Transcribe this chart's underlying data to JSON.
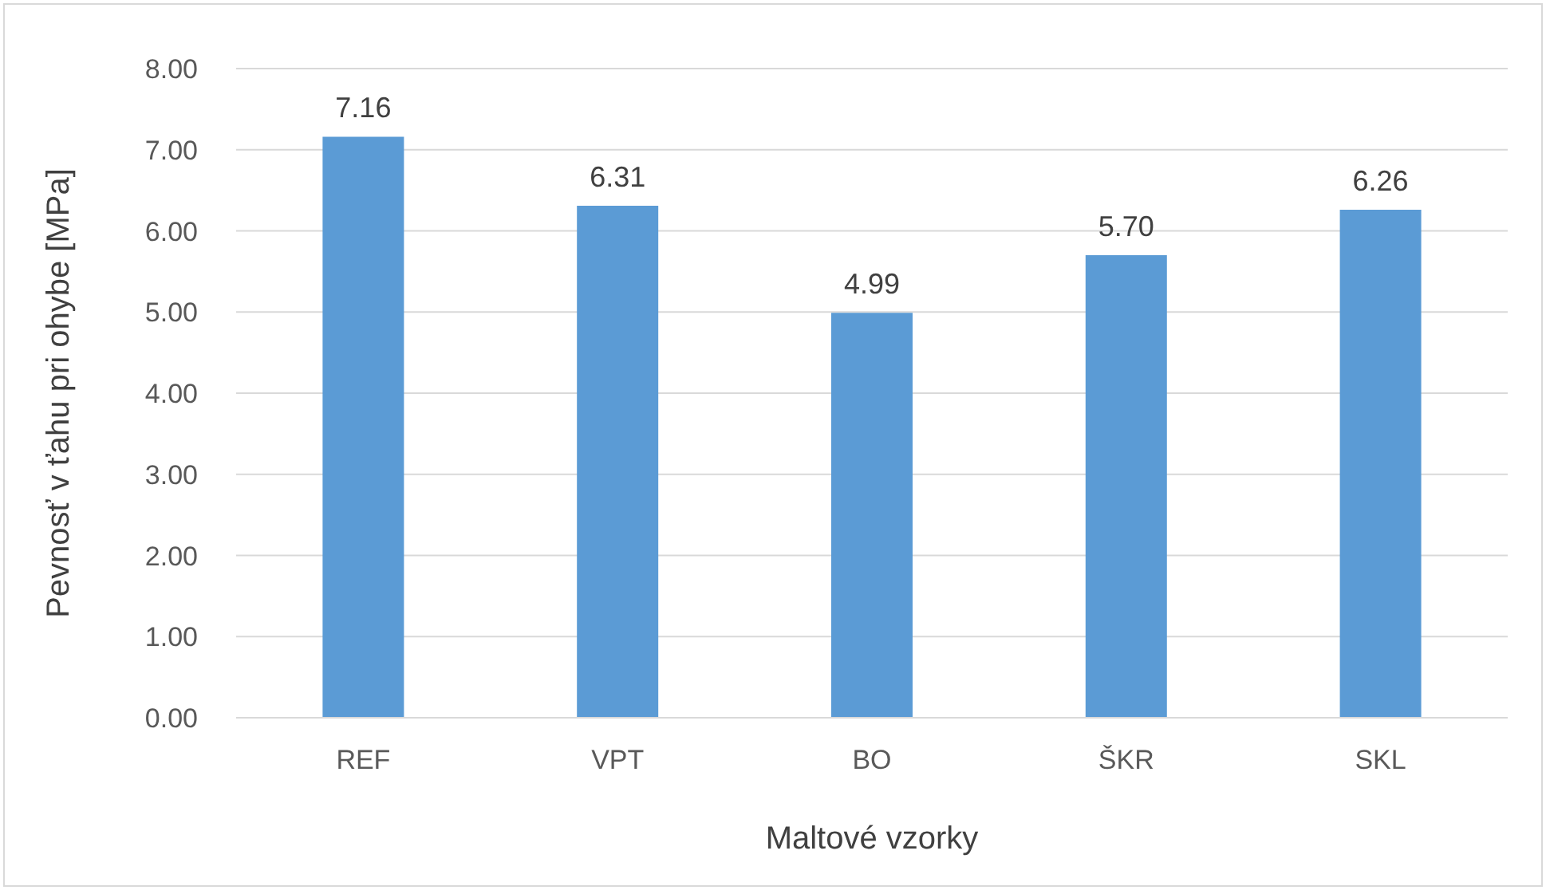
{
  "chart_data": {
    "type": "bar",
    "xlabel": "Maltové vzorky",
    "ylabel": "Pevnosť v ťahu pri ohybe [MPa]",
    "categories": [
      "REF",
      "VPT",
      "BO",
      "ŠKR",
      "SKL"
    ],
    "values": [
      7.16,
      6.31,
      4.99,
      5.7,
      6.26
    ],
    "value_labels": [
      "7.16",
      "6.31",
      "4.99",
      "5.70",
      "6.26"
    ],
    "color": "#5b9bd5",
    "ylim": [
      0,
      8
    ],
    "yticks": [
      {
        "value": 0,
        "label": "0.00"
      },
      {
        "value": 1,
        "label": "1.00"
      },
      {
        "value": 2,
        "label": "2.00"
      },
      {
        "value": 3,
        "label": "3.00"
      },
      {
        "value": 4,
        "label": "4.00"
      },
      {
        "value": 5,
        "label": "5.00"
      },
      {
        "value": 6,
        "label": "6.00"
      },
      {
        "value": 7,
        "label": "7.00"
      },
      {
        "value": 8,
        "label": "8.00"
      }
    ],
    "grid": "y",
    "legend": false
  }
}
